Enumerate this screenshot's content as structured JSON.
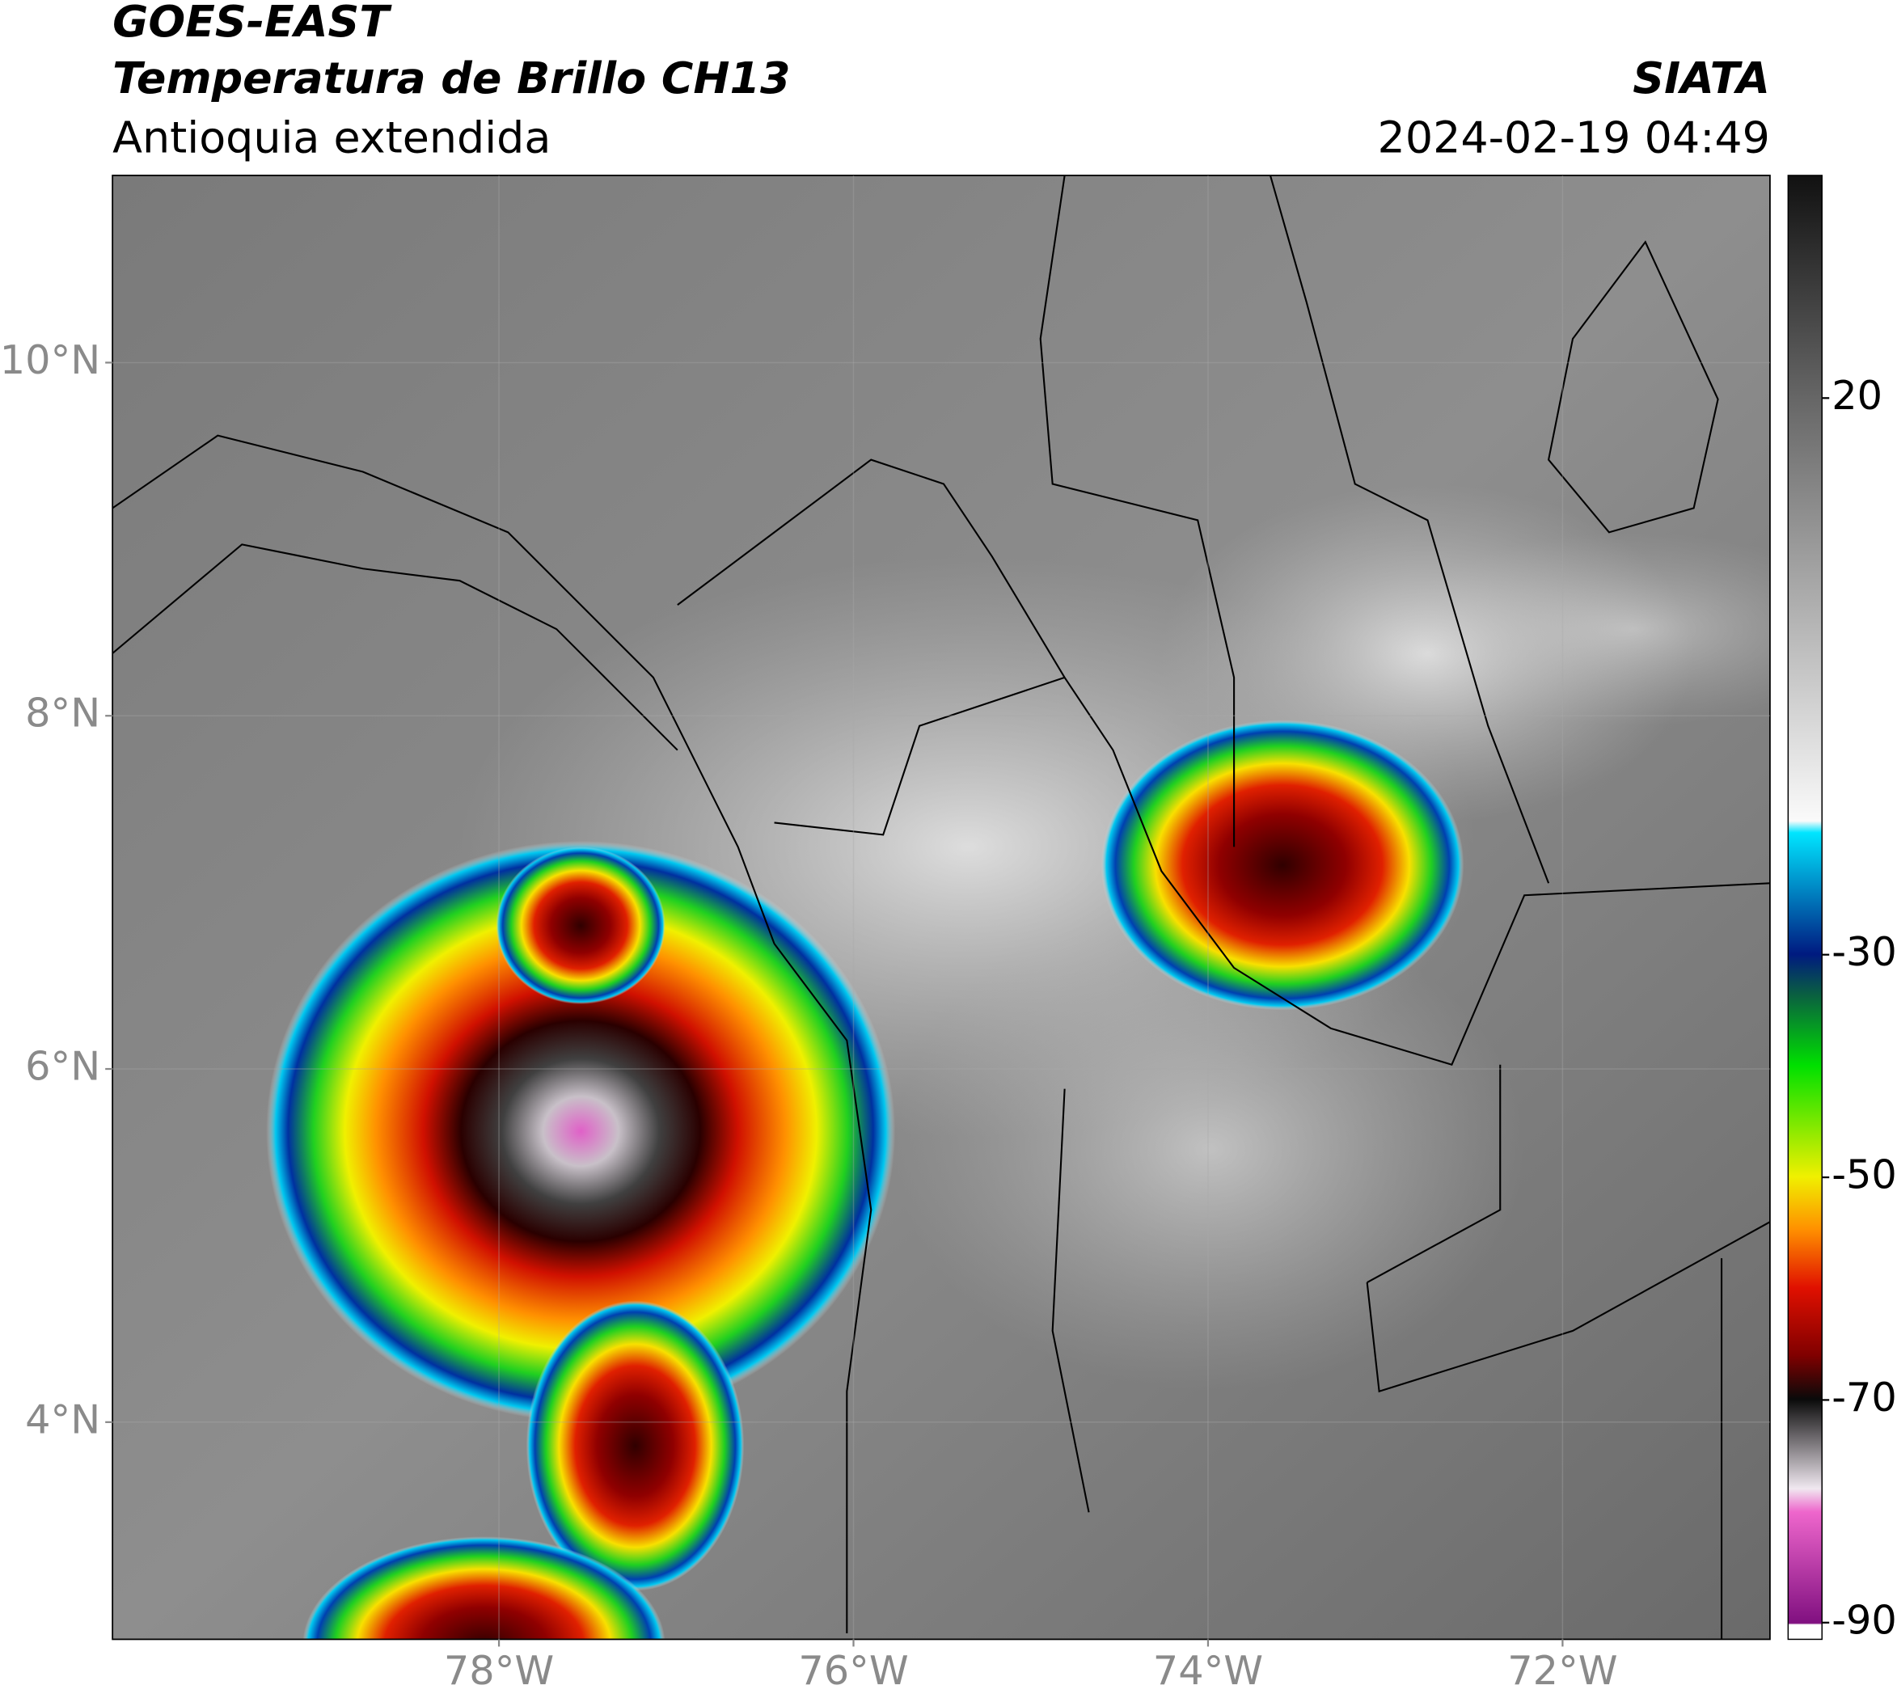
{
  "header": {
    "title": "GOES-EAST",
    "subtitle": "Temperatura de Brillo CH13",
    "region": "Antioquia extendida",
    "source": "SIATA",
    "datetime": "2024-02-19 04:49"
  },
  "map": {
    "xlim": [
      -80.18,
      -70.83
    ],
    "ylim": [
      2.77,
      11.06
    ],
    "xticks": [
      {
        "value": -78,
        "label": "78°W"
      },
      {
        "value": -76,
        "label": "76°W"
      },
      {
        "value": -74,
        "label": "74°W"
      },
      {
        "value": -72,
        "label": "72°W"
      }
    ],
    "yticks": [
      {
        "value": 10,
        "label": "10°N"
      },
      {
        "value": 8,
        "label": "8°N"
      },
      {
        "value": 6,
        "label": "6°N"
      },
      {
        "value": 4,
        "label": "4°N"
      }
    ]
  },
  "colorbar": {
    "lim": [
      -91.5,
      40
    ],
    "ticks": [
      20,
      -30,
      -50,
      -70,
      -90
    ]
  }
}
